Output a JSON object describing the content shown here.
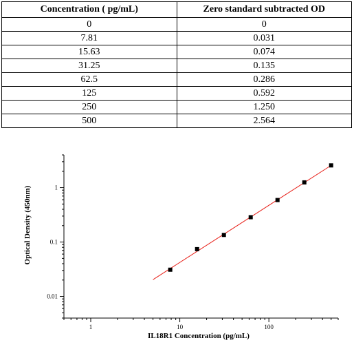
{
  "table": {
    "headers": [
      "Concentration ( pg/mL)",
      "Zero standard subtracted OD"
    ],
    "rows": [
      [
        "0",
        "0"
      ],
      [
        "7.81",
        "0.031"
      ],
      [
        "15.63",
        "0.074"
      ],
      [
        "31.25",
        "0.135"
      ],
      [
        "62.5",
        "0.286"
      ],
      [
        "125",
        "0.592"
      ],
      [
        "250",
        "1.250"
      ],
      [
        "500",
        "2.564"
      ]
    ]
  },
  "chart_data": {
    "type": "scatter",
    "title": "",
    "xlabel": "IL18R1 Concentration (pg/mL)",
    "ylabel": "Optical Density (450nm)",
    "xscale": "log",
    "yscale": "log",
    "xlim": [
      0.5,
      600
    ],
    "ylim": [
      0.004,
      4
    ],
    "x_ticks": [
      1,
      10,
      100
    ],
    "x_tick_labels": [
      "1",
      "10",
      "100"
    ],
    "y_ticks": [
      0.01,
      0.1,
      1
    ],
    "y_tick_labels": [
      "0.01",
      "0.1",
      "1"
    ],
    "series": [
      {
        "x": [
          7.81,
          15.63,
          31.25,
          62.5,
          125,
          250,
          500
        ],
        "y": [
          0.031,
          0.074,
          0.135,
          0.286,
          0.592,
          1.25,
          2.564
        ],
        "marker": "square",
        "color": "#000000"
      }
    ],
    "fit_line": {
      "color": "#e8211a",
      "x_range": [
        5,
        500
      ]
    },
    "grid": false,
    "legend": "none"
  }
}
